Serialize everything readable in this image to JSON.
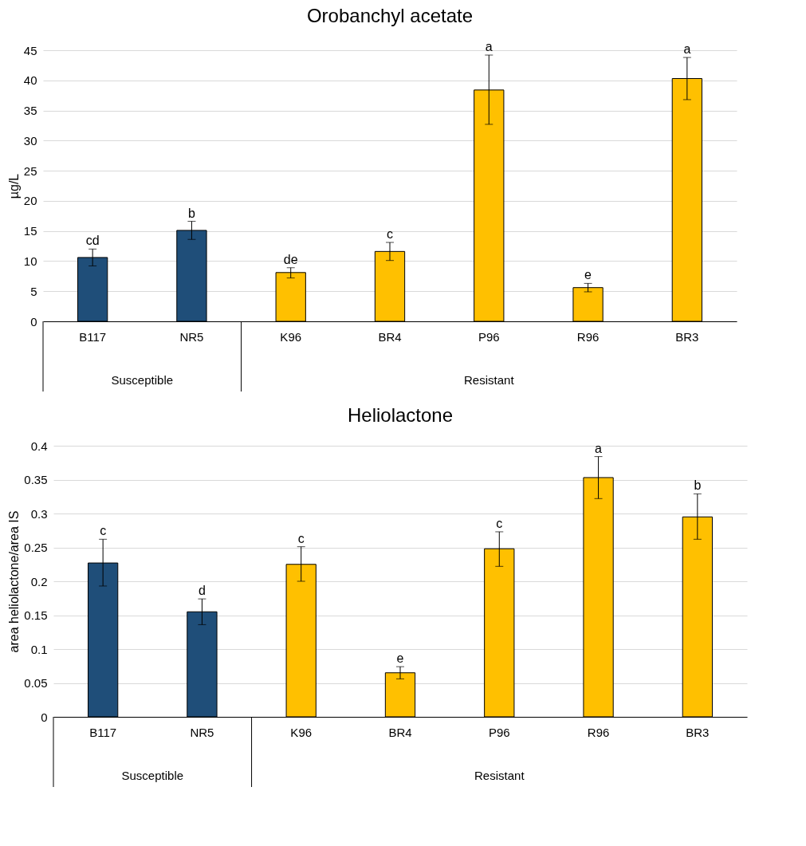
{
  "chart_data": [
    {
      "type": "bar",
      "title": "Orobanchyl acetate",
      "ylabel": "µg/L",
      "categories": [
        "B117",
        "NR5",
        "K96",
        "BR4",
        "P96",
        "R96",
        "BR3"
      ],
      "values": [
        10.6,
        15.1,
        8.1,
        11.6,
        38.4,
        5.6,
        40.3
      ],
      "colors": [
        "#1f4e79",
        "#1f4e79",
        "#ffc000",
        "#ffc000",
        "#ffc000",
        "#ffc000",
        "#ffc000"
      ],
      "errors": [
        [
          9.2,
          12.0
        ],
        [
          13.6,
          16.6
        ],
        [
          7.2,
          8.9
        ],
        [
          10.1,
          13.1
        ],
        [
          32.7,
          44.2
        ],
        [
          4.9,
          6.3
        ],
        [
          36.8,
          43.8
        ]
      ],
      "ylim": [
        0,
        45
      ],
      "yticks": [
        0,
        5,
        10,
        15,
        20,
        25,
        30,
        35,
        40,
        45
      ],
      "grid": "y",
      "annotations": [
        {
          "text": "cd",
          "x": "B117",
          "y": 12.0
        },
        {
          "text": "b",
          "x": "NR5",
          "y": 16.6
        },
        {
          "text": "de",
          "x": "K96",
          "y": 8.9
        },
        {
          "text": "c",
          "x": "BR4",
          "y": 13.1
        },
        {
          "text": "a",
          "x": "P96",
          "y": 44.2
        },
        {
          "text": "e",
          "x": "R96",
          "y": 6.3
        },
        {
          "text": "a",
          "x": "BR3",
          "y": 43.8
        },
        "Susceptible",
        "Resistant"
      ]
    },
    {
      "type": "bar",
      "title": "Heliolactone",
      "ylabel": "area heliolactone/area IS",
      "categories": [
        "B117",
        "NR5",
        "K96",
        "BR4",
        "P96",
        "R96",
        "BR3"
      ],
      "values": [
        0.227,
        0.155,
        0.225,
        0.065,
        0.248,
        0.353,
        0.295
      ],
      "colors": [
        "#1f4e79",
        "#1f4e79",
        "#ffc000",
        "#ffc000",
        "#ffc000",
        "#ffc000",
        "#ffc000"
      ],
      "errors": [
        [
          0.193,
          0.262
        ],
        [
          0.136,
          0.174
        ],
        [
          0.2,
          0.251
        ],
        [
          0.056,
          0.074
        ],
        [
          0.222,
          0.273
        ],
        [
          0.322,
          0.384
        ],
        [
          0.262,
          0.329
        ]
      ],
      "ylim": [
        0,
        0.4
      ],
      "yticks": [
        0,
        0.05,
        0.1,
        0.15,
        0.2,
        0.25,
        0.3,
        0.35,
        0.4
      ],
      "grid": "y",
      "annotations": [
        {
          "text": "c",
          "x": "B117",
          "y": 0.262
        },
        {
          "text": "d",
          "x": "NR5",
          "y": 0.174
        },
        {
          "text": "c",
          "x": "K96",
          "y": 0.251
        },
        {
          "text": "e",
          "x": "BR4",
          "y": 0.074
        },
        {
          "text": "c",
          "x": "P96",
          "y": 0.273
        },
        {
          "text": "a",
          "x": "R96",
          "y": 0.384
        },
        {
          "text": "b",
          "x": "BR3",
          "y": 0.329
        },
        "Susceptible",
        "Resistant"
      ]
    }
  ]
}
